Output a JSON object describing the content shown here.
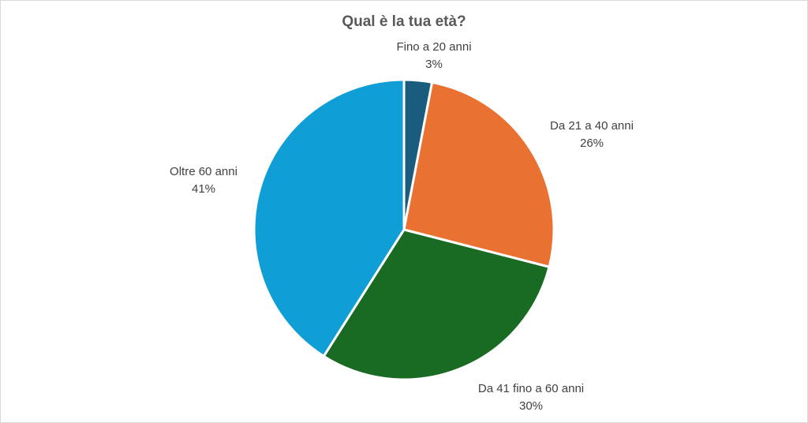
{
  "chart_data": {
    "type": "pie",
    "title": "Qual è la tua età?",
    "categories": [
      "Fino a 20 anni",
      "Da 21 a 40 anni",
      "Da 41 fino a 60 anni",
      "Oltre 60 anni"
    ],
    "values": [
      3,
      26,
      30,
      41
    ],
    "value_labels": [
      "3%",
      "26%",
      "30%",
      "41%"
    ],
    "colors": [
      "#1a5c7e",
      "#e97132",
      "#196b24",
      "#0f9ed5"
    ],
    "start_angle": "12 o'clock",
    "direction": "clockwise",
    "legend": "none"
  }
}
